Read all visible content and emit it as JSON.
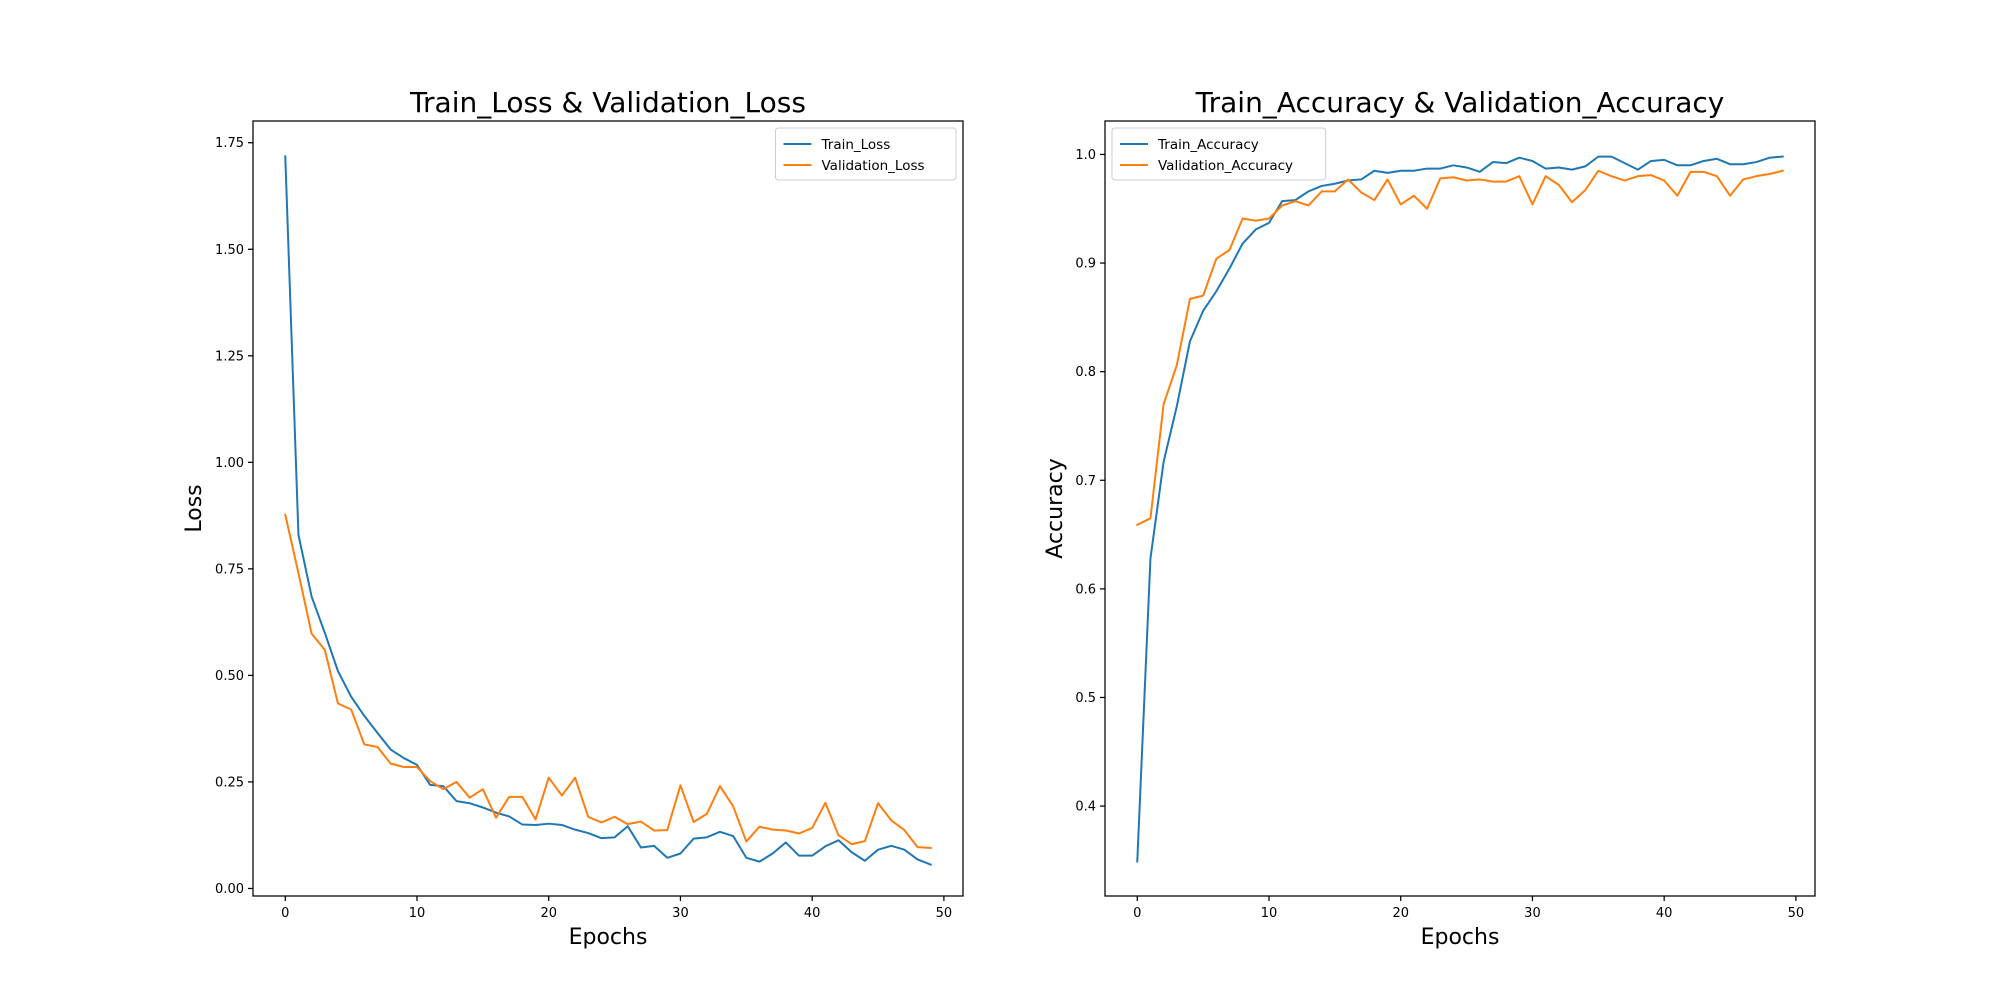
{
  "colors": {
    "train": "#1f77b4",
    "validation": "#ff7f0e"
  },
  "chart_data": [
    {
      "type": "line",
      "title": "Train_Loss & Validation_Loss",
      "xlabel": "Epochs",
      "ylabel": "Loss",
      "xlim": [
        -2.45,
        51.45
      ],
      "ylim": [
        -0.0177,
        1.801
      ],
      "xticks": [
        0,
        10,
        20,
        30,
        40,
        50
      ],
      "xtick_labels": [
        "0",
        "10",
        "20",
        "30",
        "40",
        "50"
      ],
      "yticks": [
        0,
        0.25,
        0.5,
        0.75,
        1.0,
        1.25,
        1.5,
        1.75
      ],
      "ytick_labels": [
        "0.00",
        "0.25",
        "0.50",
        "0.75",
        "1.00",
        "1.25",
        "1.50",
        "1.75"
      ],
      "legend": "upper-right",
      "grid": false,
      "series": [
        {
          "name": "Train_Loss",
          "color_key": "train",
          "x": [
            0,
            1,
            2,
            3,
            4,
            5,
            6,
            7,
            8,
            9,
            10,
            11,
            12,
            13,
            14,
            15,
            16,
            17,
            18,
            19,
            20,
            21,
            22,
            23,
            24,
            25,
            26,
            27,
            28,
            29,
            30,
            31,
            32,
            33,
            34,
            35,
            36,
            37,
            38,
            39,
            40,
            41,
            42,
            43,
            44,
            45,
            46,
            47,
            48,
            49
          ],
          "y": [
            1.718,
            0.83,
            0.685,
            0.6,
            0.51,
            0.45,
            0.405,
            0.365,
            0.326,
            0.306,
            0.29,
            0.243,
            0.24,
            0.205,
            0.2,
            0.19,
            0.178,
            0.169,
            0.15,
            0.149,
            0.152,
            0.149,
            0.138,
            0.13,
            0.118,
            0.12,
            0.146,
            0.096,
            0.1,
            0.072,
            0.082,
            0.117,
            0.12,
            0.133,
            0.123,
            0.072,
            0.063,
            0.082,
            0.108,
            0.077,
            0.077,
            0.099,
            0.113,
            0.085,
            0.065,
            0.091,
            0.1,
            0.091,
            0.068,
            0.056
          ]
        },
        {
          "name": "Validation_Loss",
          "color_key": "validation",
          "x": [
            0,
            1,
            2,
            3,
            4,
            5,
            6,
            7,
            8,
            9,
            10,
            11,
            12,
            13,
            14,
            15,
            16,
            17,
            18,
            19,
            20,
            21,
            22,
            23,
            24,
            25,
            26,
            27,
            28,
            29,
            30,
            31,
            32,
            33,
            34,
            35,
            36,
            37,
            38,
            39,
            40,
            41,
            42,
            43,
            44,
            45,
            46,
            47,
            48,
            49
          ],
          "y": [
            0.877,
            0.74,
            0.598,
            0.56,
            0.434,
            0.42,
            0.338,
            0.332,
            0.293,
            0.285,
            0.285,
            0.252,
            0.233,
            0.25,
            0.213,
            0.233,
            0.166,
            0.215,
            0.215,
            0.162,
            0.26,
            0.218,
            0.26,
            0.168,
            0.155,
            0.168,
            0.151,
            0.157,
            0.136,
            0.137,
            0.242,
            0.156,
            0.175,
            0.24,
            0.193,
            0.11,
            0.145,
            0.138,
            0.136,
            0.129,
            0.142,
            0.201,
            0.125,
            0.104,
            0.111,
            0.2,
            0.16,
            0.137,
            0.097,
            0.095
          ]
        }
      ]
    },
    {
      "type": "line",
      "title": "Train_Accuracy & Validation_Accuracy",
      "xlabel": "Epochs",
      "ylabel": "Accuracy",
      "xlim": [
        -2.45,
        51.45
      ],
      "ylim": [
        0.3172,
        1.0308
      ],
      "xticks": [
        0,
        10,
        20,
        30,
        40,
        50
      ],
      "xtick_labels": [
        "0",
        "10",
        "20",
        "30",
        "40",
        "50"
      ],
      "yticks": [
        0.4,
        0.5,
        0.6,
        0.7,
        0.8,
        0.9,
        1.0
      ],
      "ytick_labels": [
        "0.4",
        "0.5",
        "0.6",
        "0.7",
        "0.8",
        "0.9",
        "1.0"
      ],
      "legend": "upper-left",
      "grid": false,
      "series": [
        {
          "name": "Train_Accuracy",
          "color_key": "train",
          "x": [
            0,
            1,
            2,
            3,
            4,
            5,
            6,
            7,
            8,
            9,
            10,
            11,
            12,
            13,
            14,
            15,
            16,
            17,
            18,
            19,
            20,
            21,
            22,
            23,
            24,
            25,
            26,
            27,
            28,
            29,
            30,
            31,
            32,
            33,
            34,
            35,
            36,
            37,
            38,
            39,
            40,
            41,
            42,
            43,
            44,
            45,
            46,
            47,
            48,
            49
          ],
          "y": [
            0.349,
            0.628,
            0.717,
            0.768,
            0.828,
            0.856,
            0.874,
            0.895,
            0.918,
            0.931,
            0.937,
            0.957,
            0.958,
            0.966,
            0.971,
            0.973,
            0.976,
            0.977,
            0.985,
            0.983,
            0.985,
            0.985,
            0.987,
            0.987,
            0.99,
            0.988,
            0.984,
            0.993,
            0.992,
            0.997,
            0.994,
            0.987,
            0.988,
            0.986,
            0.989,
            0.998,
            0.998,
            0.992,
            0.986,
            0.994,
            0.995,
            0.99,
            0.99,
            0.994,
            0.996,
            0.991,
            0.991,
            0.993,
            0.997,
            0.998
          ]
        },
        {
          "name": "Validation_Accuracy",
          "color_key": "validation",
          "x": [
            0,
            1,
            2,
            3,
            4,
            5,
            6,
            7,
            8,
            9,
            10,
            11,
            12,
            13,
            14,
            15,
            16,
            17,
            18,
            19,
            20,
            21,
            22,
            23,
            24,
            25,
            26,
            27,
            28,
            29,
            30,
            31,
            32,
            33,
            34,
            35,
            36,
            37,
            38,
            39,
            40,
            41,
            42,
            43,
            44,
            45,
            46,
            47,
            48,
            49
          ],
          "y": [
            0.659,
            0.665,
            0.77,
            0.806,
            0.867,
            0.87,
            0.904,
            0.912,
            0.941,
            0.939,
            0.941,
            0.953,
            0.957,
            0.953,
            0.966,
            0.966,
            0.977,
            0.965,
            0.958,
            0.977,
            0.954,
            0.962,
            0.95,
            0.978,
            0.979,
            0.976,
            0.977,
            0.975,
            0.975,
            0.98,
            0.954,
            0.98,
            0.972,
            0.956,
            0.967,
            0.985,
            0.98,
            0.976,
            0.98,
            0.981,
            0.976,
            0.962,
            0.984,
            0.984,
            0.98,
            0.962,
            0.977,
            0.98,
            0.982,
            0.985
          ]
        }
      ]
    }
  ]
}
